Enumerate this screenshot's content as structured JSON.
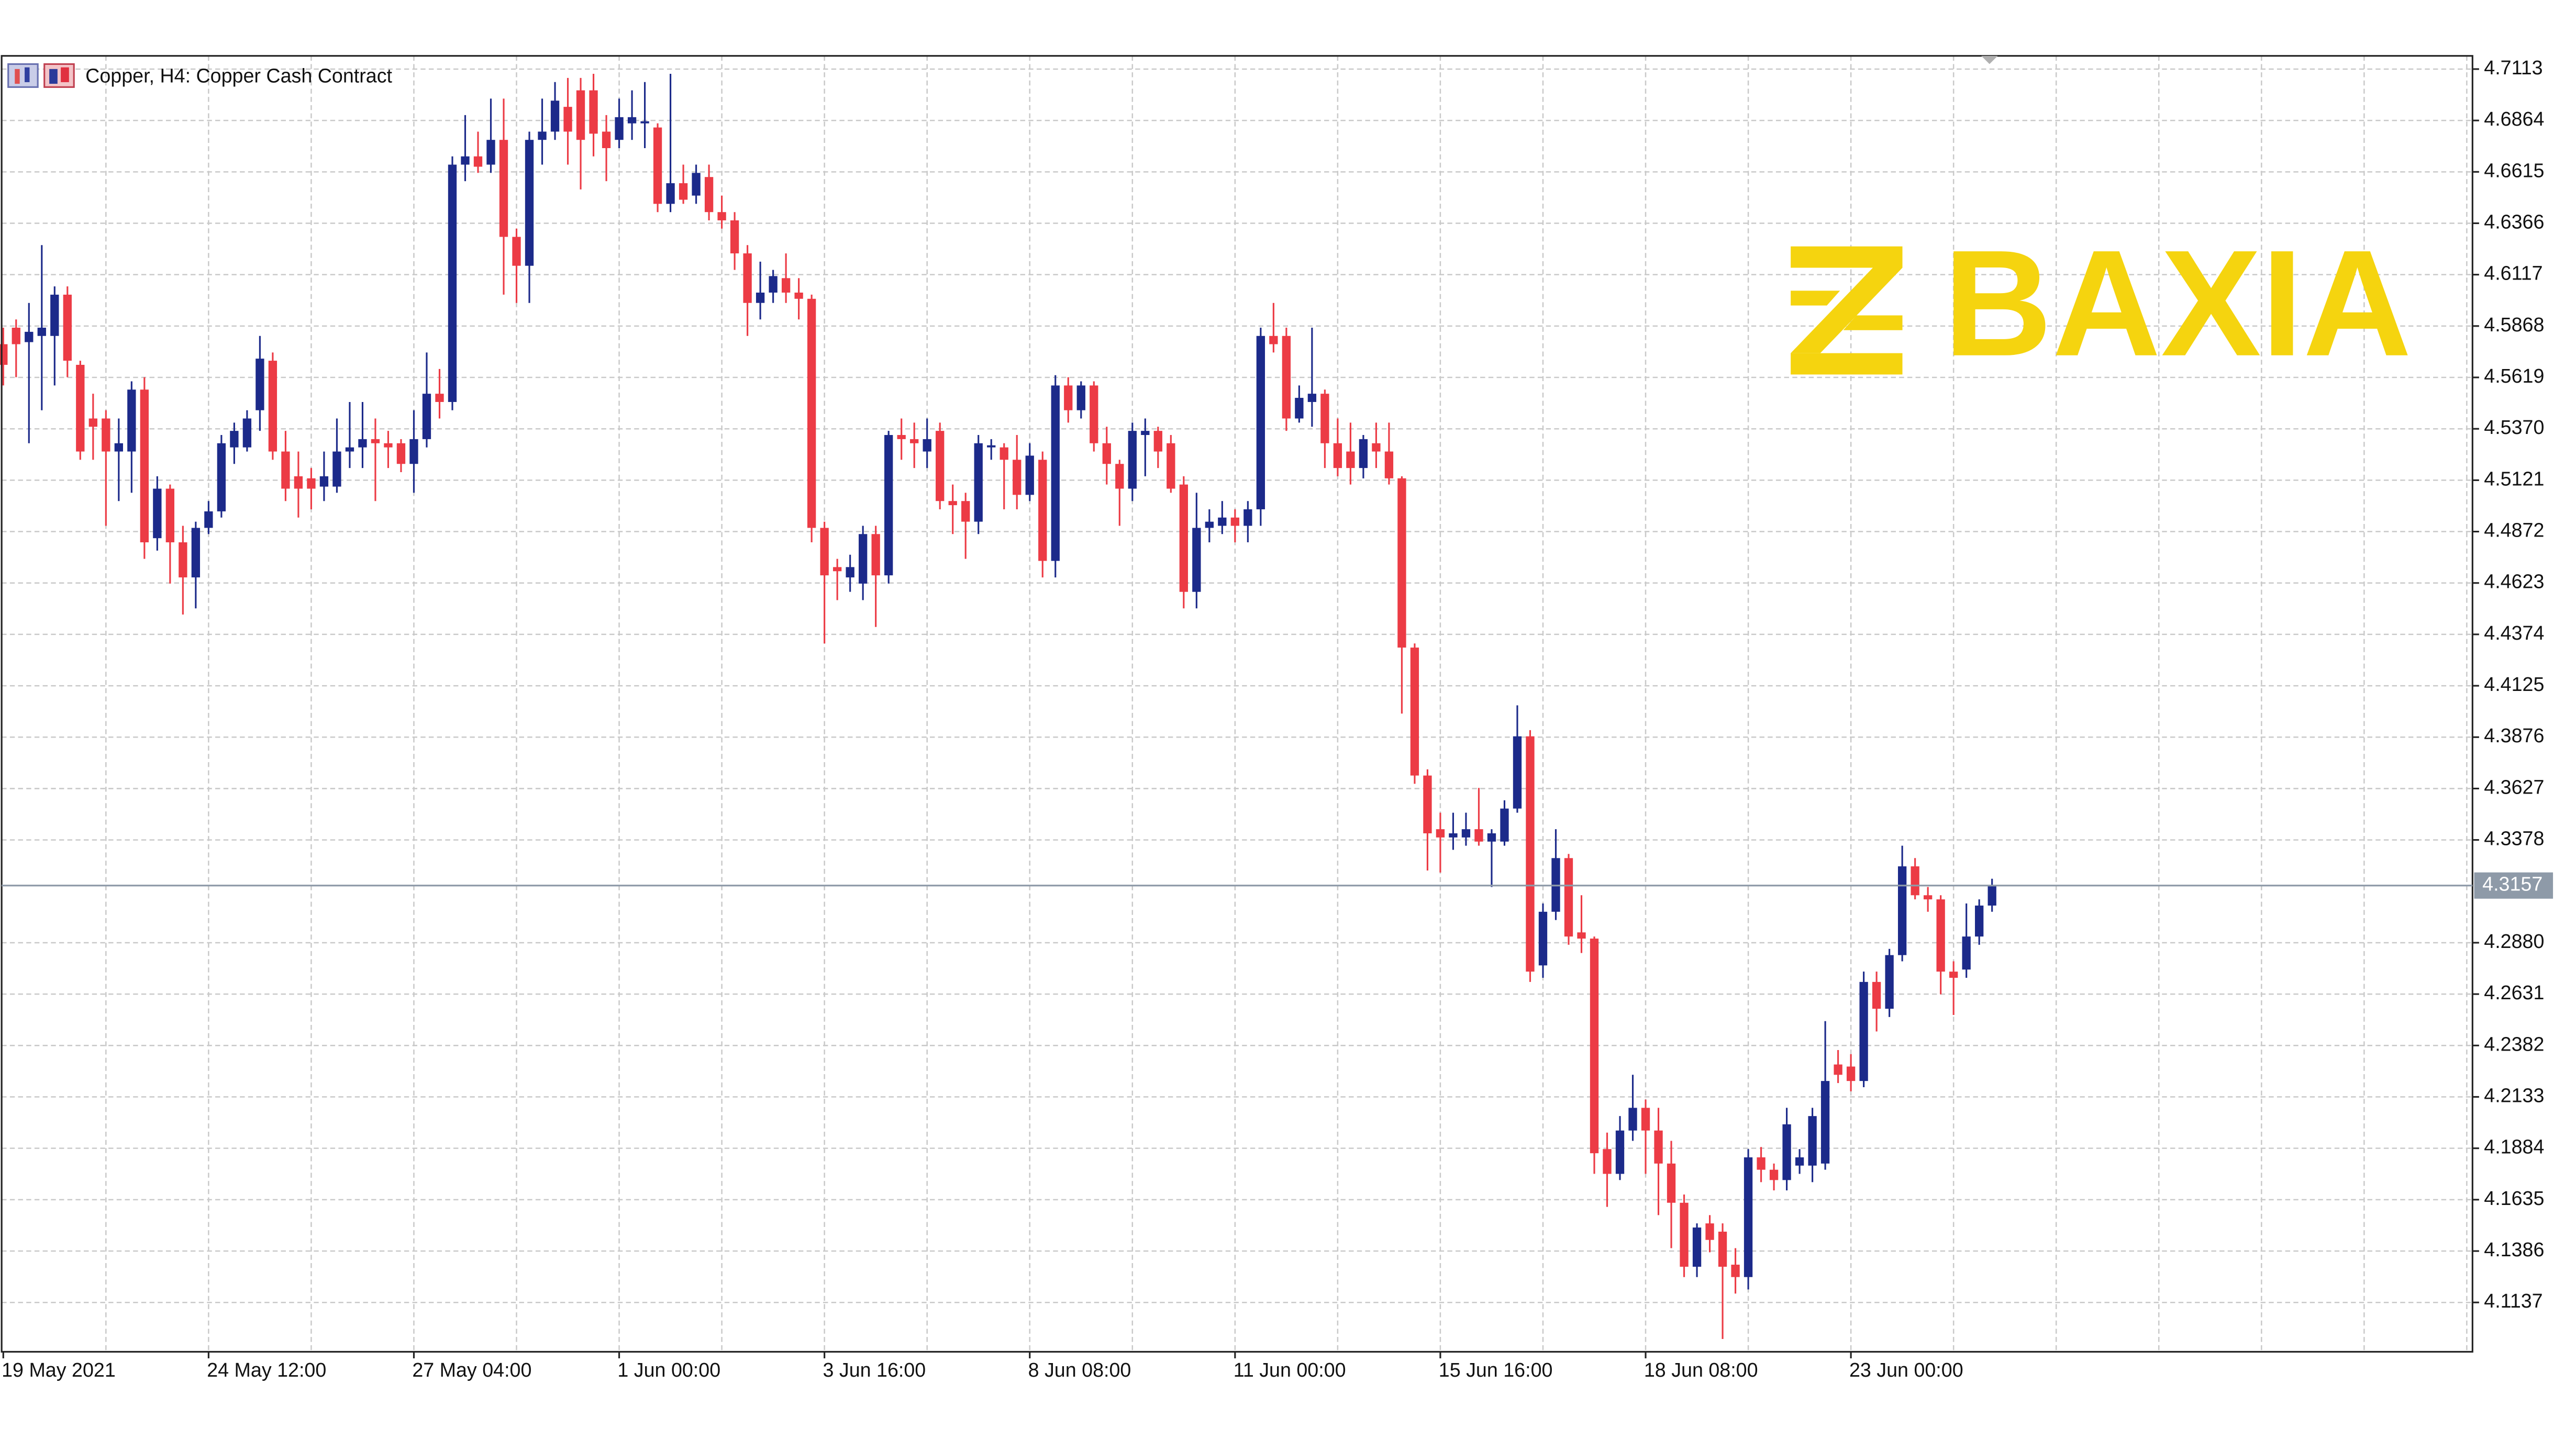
{
  "chart_data": {
    "type": "candlestick",
    "title": "Copper, H4: Copper Cash Contract",
    "watermark": "BAXIA",
    "categories": [
      "19 May 2021",
      null,
      null,
      null,
      null,
      null,
      null,
      null,
      null,
      null,
      null,
      null,
      null,
      null,
      null,
      null,
      "24 May 12:00",
      null,
      null,
      null,
      null,
      null,
      null,
      null,
      null,
      null,
      null,
      null,
      null,
      null,
      null,
      null,
      "27 May 04:00",
      null,
      null,
      null,
      null,
      null,
      null,
      null,
      null,
      null,
      null,
      null,
      null,
      null,
      null,
      null,
      "1 Jun 00:00",
      null,
      null,
      null,
      null,
      null,
      null,
      null,
      null,
      null,
      null,
      null,
      null,
      null,
      null,
      null,
      "3 Jun 16:00",
      null,
      null,
      null,
      null,
      null,
      null,
      null,
      null,
      null,
      null,
      null,
      null,
      null,
      null,
      null,
      "8 Jun 08:00",
      null,
      null,
      null,
      null,
      null,
      null,
      null,
      null,
      null,
      null,
      null,
      null,
      null,
      null,
      null,
      "11 Jun 00:00",
      null,
      null,
      null,
      null,
      null,
      null,
      null,
      null,
      null,
      null,
      null,
      null,
      null,
      null,
      null,
      "15 Jun 16:00",
      null,
      null,
      null,
      null,
      null,
      null,
      null,
      null,
      null,
      null,
      null,
      null,
      null,
      null,
      null,
      "18 Jun 08:00",
      null,
      null,
      null,
      null,
      null,
      null,
      null,
      null,
      null,
      null,
      null,
      null,
      null,
      null,
      null,
      "23 Jun 00:00",
      null,
      null,
      null,
      null,
      null,
      null,
      null,
      null,
      null,
      null,
      null
    ],
    "open": [
      4.578,
      4.586,
      4.579,
      4.582,
      4.582,
      4.602,
      4.568,
      4.542,
      4.542,
      4.526,
      4.526,
      4.556,
      4.484,
      4.508,
      4.482,
      4.465,
      4.489,
      4.497,
      4.528,
      4.528,
      4.546,
      4.57,
      4.526,
      4.514,
      4.513,
      4.509,
      4.509,
      4.526,
      4.528,
      4.532,
      4.53,
      4.53,
      4.52,
      4.532,
      4.554,
      4.55,
      4.665,
      4.669,
      4.665,
      4.677,
      4.63,
      4.616,
      4.677,
      4.681,
      4.693,
      4.701,
      4.701,
      4.681,
      4.677,
      4.685,
      4.685,
      4.683,
      4.646,
      4.656,
      4.65,
      4.659,
      4.642,
      4.638,
      4.622,
      4.598,
      4.603,
      4.61,
      4.603,
      4.6,
      4.489,
      4.47,
      4.465,
      4.462,
      4.486,
      4.466,
      4.534,
      4.532,
      4.526,
      4.536,
      4.502,
      4.502,
      4.492,
      4.528,
      4.528,
      4.522,
      4.505,
      4.522,
      4.473,
      4.558,
      4.546,
      4.558,
      4.53,
      4.52,
      4.508,
      4.534,
      4.536,
      4.53,
      4.51,
      4.458,
      4.489,
      4.49,
      4.494,
      4.49,
      4.498,
      4.582,
      4.582,
      4.542,
      4.55,
      4.554,
      4.53,
      4.526,
      4.518,
      4.53,
      4.526,
      4.513,
      4.431,
      4.369,
      4.343,
      4.339,
      4.339,
      4.343,
      4.337,
      4.337,
      4.353,
      4.388,
      4.277,
      4.303,
      4.329,
      4.293,
      4.29,
      4.188,
      4.176,
      4.197,
      4.208,
      4.197,
      4.181,
      4.162,
      4.131,
      4.152,
      4.148,
      4.132,
      4.126,
      4.184,
      4.178,
      4.173,
      4.18,
      4.18,
      4.181,
      4.229,
      4.228,
      4.221,
      4.269,
      4.256,
      4.282,
      4.325,
      4.311,
      4.309,
      4.274,
      4.275,
      4.291,
      4.306
    ],
    "high": [
      4.586,
      4.59,
      4.598,
      4.626,
      4.606,
      4.606,
      4.57,
      4.554,
      4.546,
      4.542,
      4.56,
      4.562,
      4.514,
      4.51,
      4.49,
      4.492,
      4.502,
      4.534,
      4.54,
      4.546,
      4.582,
      4.574,
      4.536,
      4.526,
      4.518,
      4.526,
      4.542,
      4.55,
      4.55,
      4.542,
      4.536,
      4.532,
      4.546,
      4.574,
      4.566,
      4.669,
      4.689,
      4.681,
      4.697,
      4.697,
      4.634,
      4.681,
      4.697,
      4.705,
      4.707,
      4.707,
      4.709,
      4.689,
      4.697,
      4.701,
      4.705,
      4.685,
      4.709,
      4.665,
      4.665,
      4.665,
      4.65,
      4.642,
      4.626,
      4.618,
      4.614,
      4.622,
      4.61,
      4.602,
      4.492,
      4.474,
      4.476,
      4.49,
      4.49,
      4.536,
      4.542,
      4.54,
      4.542,
      4.54,
      4.51,
      4.506,
      4.534,
      4.532,
      4.53,
      4.534,
      4.53,
      4.526,
      4.563,
      4.562,
      4.56,
      4.56,
      4.538,
      4.522,
      4.54,
      4.542,
      4.538,
      4.534,
      4.514,
      4.506,
      4.498,
      4.502,
      4.498,
      4.502,
      4.586,
      4.598,
      4.586,
      4.558,
      4.586,
      4.556,
      4.542,
      4.54,
      4.534,
      4.54,
      4.54,
      4.514,
      4.433,
      4.372,
      4.351,
      4.351,
      4.351,
      4.363,
      4.343,
      4.357,
      4.403,
      4.391,
      4.307,
      4.343,
      4.331,
      4.311,
      4.291,
      4.196,
      4.204,
      4.224,
      4.212,
      4.208,
      4.192,
      4.166,
      4.152,
      4.156,
      4.152,
      4.14,
      4.188,
      4.189,
      4.181,
      4.208,
      4.188,
      4.208,
      4.25,
      4.236,
      4.234,
      4.274,
      4.274,
      4.285,
      4.335,
      4.329,
      4.315,
      4.311,
      4.279,
      4.307,
      4.309,
      4.319
    ],
    "low": [
      4.558,
      4.562,
      4.53,
      4.546,
      4.558,
      4.562,
      4.522,
      4.522,
      4.49,
      4.502,
      4.506,
      4.474,
      4.478,
      4.462,
      4.447,
      4.45,
      4.486,
      4.494,
      4.52,
      4.526,
      4.536,
      4.522,
      4.502,
      4.494,
      4.498,
      4.502,
      4.506,
      4.518,
      4.518,
      4.502,
      4.518,
      4.516,
      4.506,
      4.528,
      4.542,
      4.546,
      4.657,
      4.661,
      4.661,
      4.602,
      4.598,
      4.598,
      4.665,
      4.677,
      4.665,
      4.653,
      4.669,
      4.657,
      4.673,
      4.677,
      4.673,
      4.642,
      4.642,
      4.646,
      4.646,
      4.638,
      4.634,
      4.614,
      4.582,
      4.59,
      4.598,
      4.598,
      4.59,
      4.482,
      4.433,
      4.454,
      4.458,
      4.454,
      4.441,
      4.462,
      4.522,
      4.518,
      4.518,
      4.498,
      4.486,
      4.474,
      4.486,
      4.522,
      4.498,
      4.498,
      4.502,
      4.465,
      4.465,
      4.54,
      4.542,
      4.526,
      4.51,
      4.49,
      4.502,
      4.514,
      4.518,
      4.506,
      4.45,
      4.45,
      4.482,
      4.486,
      4.482,
      4.482,
      4.49,
      4.574,
      4.536,
      4.54,
      4.538,
      4.518,
      4.514,
      4.51,
      4.513,
      4.518,
      4.51,
      4.399,
      4.365,
      4.323,
      4.322,
      4.333,
      4.335,
      4.335,
      4.315,
      4.335,
      4.351,
      4.269,
      4.271,
      4.299,
      4.287,
      4.283,
      4.176,
      4.16,
      4.173,
      4.192,
      4.176,
      4.156,
      4.14,
      4.126,
      4.126,
      4.138,
      4.096,
      4.118,
      4.12,
      4.172,
      4.168,
      4.168,
      4.176,
      4.172,
      4.178,
      4.22,
      4.216,
      4.218,
      4.245,
      4.252,
      4.279,
      4.309,
      4.303,
      4.263,
      4.253,
      4.271,
      4.287,
      4.303
    ],
    "close": [
      4.568,
      4.578,
      4.584,
      4.586,
      4.602,
      4.57,
      4.526,
      4.538,
      4.526,
      4.53,
      4.556,
      4.482,
      4.508,
      4.482,
      4.465,
      4.489,
      4.497,
      4.53,
      4.536,
      4.542,
      4.571,
      4.526,
      4.508,
      4.508,
      4.508,
      4.514,
      4.526,
      4.528,
      4.532,
      4.53,
      4.528,
      4.52,
      4.532,
      4.554,
      4.55,
      4.665,
      4.669,
      4.664,
      4.677,
      4.63,
      4.616,
      4.677,
      4.681,
      4.696,
      4.681,
      4.677,
      4.68,
      4.673,
      4.688,
      4.688,
      4.686,
      4.646,
      4.656,
      4.648,
      4.661,
      4.642,
      4.638,
      4.622,
      4.598,
      4.603,
      4.611,
      4.603,
      4.6,
      4.489,
      4.466,
      4.468,
      4.47,
      4.486,
      4.466,
      4.534,
      4.532,
      4.53,
      4.532,
      4.502,
      4.5,
      4.492,
      4.53,
      4.529,
      4.522,
      4.505,
      4.524,
      4.473,
      4.558,
      4.546,
      4.558,
      4.53,
      4.52,
      4.508,
      4.536,
      4.536,
      4.526,
      4.508,
      4.458,
      4.489,
      4.492,
      4.494,
      4.49,
      4.498,
      4.582,
      4.578,
      4.542,
      4.552,
      4.554,
      4.53,
      4.518,
      4.518,
      4.532,
      4.526,
      4.513,
      4.431,
      4.369,
      4.341,
      4.339,
      4.341,
      4.343,
      4.337,
      4.341,
      4.353,
      4.388,
      4.274,
      4.303,
      4.329,
      4.291,
      4.29,
      4.186,
      4.176,
      4.197,
      4.208,
      4.197,
      4.181,
      4.162,
      4.131,
      4.15,
      4.144,
      4.131,
      4.126,
      4.184,
      4.178,
      4.173,
      4.2,
      4.184,
      4.204,
      4.221,
      4.224,
      4.221,
      4.269,
      4.256,
      4.282,
      4.325,
      4.311,
      4.309,
      4.274,
      4.271,
      4.291,
      4.306,
      4.3157
    ],
    "up_color": "#1c2a8a",
    "down_color": "#ec3b45",
    "last_price": 4.3157,
    "ylim": [
      4.0898,
      4.7177
    ],
    "yticks": [
      4.7113,
      4.6864,
      4.6615,
      4.6366,
      4.6117,
      4.5868,
      4.5619,
      {
        "value": 4.537,
        "label": "4.5370"
      },
      4.5121,
      4.4872,
      4.4623,
      4.4374,
      4.4125,
      4.3876,
      4.3627,
      4.3378,
      {
        "value": 4.288,
        "label": "4.2880"
      },
      4.2631,
      4.2382,
      4.2133,
      4.1884,
      4.1635,
      4.1386,
      4.1137
    ],
    "grid": true
  }
}
